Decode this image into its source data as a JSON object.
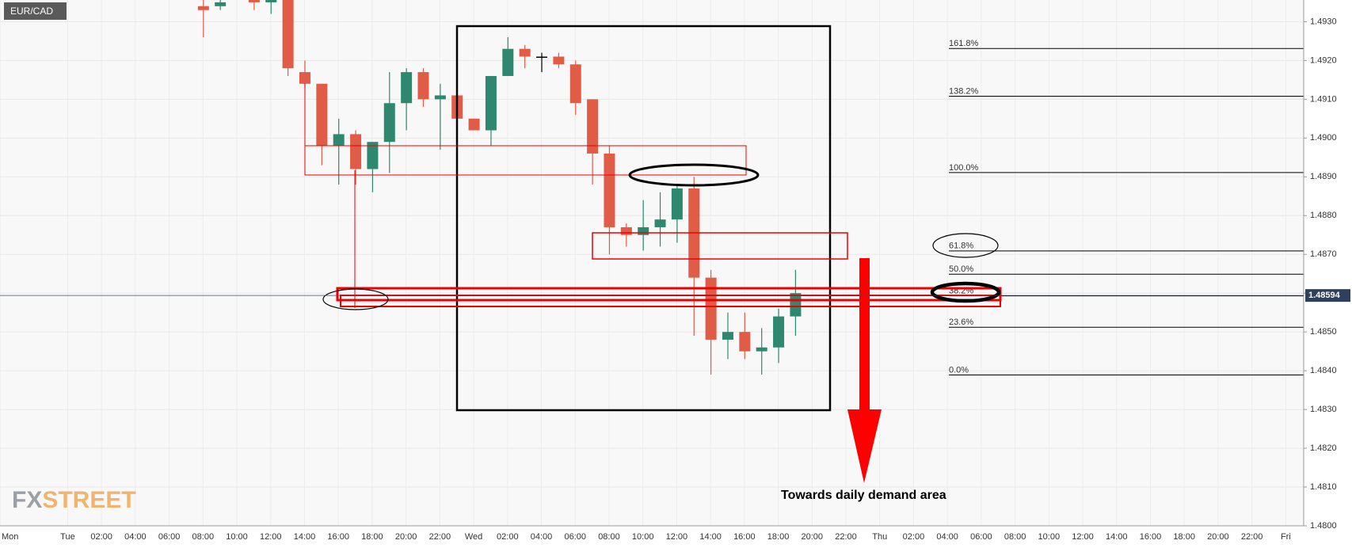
{
  "chart_data": {
    "type": "candlestick",
    "title": "EUR/CAD",
    "categories": [
      "Mon",
      null,
      null,
      null,
      "Tue",
      null,
      "02:00",
      null,
      "04:00",
      null,
      "06:00",
      null,
      "08:00",
      null,
      "10:00",
      null,
      "12:00",
      null,
      "14:00",
      null,
      "16:00",
      null,
      "18:00",
      null,
      "20:00",
      null,
      "22:00",
      null,
      "Wed",
      null,
      "02:00",
      null,
      "04:00",
      null,
      "06:00",
      null,
      "08:00",
      null,
      "10:00",
      null,
      "12:00",
      null,
      "14:00",
      null,
      "16:00",
      null,
      "18:00",
      null,
      "20:00",
      null,
      "22:00",
      null,
      "Thu",
      null,
      "02:00",
      null,
      "04:00",
      null,
      "06:00",
      null,
      "08:00",
      null,
      "10:00",
      null,
      "12:00",
      null,
      "14:00",
      null,
      "16:00",
      null,
      "18:00",
      null,
      "20:00",
      null,
      "22:00",
      null,
      "Fri"
    ],
    "open": [
      null,
      null,
      null,
      null,
      null,
      null,
      null,
      null,
      null,
      null,
      null,
      null,
      1.4934,
      1.4934,
      null,
      1.4936,
      1.4935,
      1.4936,
      1.4917,
      1.4914,
      1.4898,
      1.4901,
      1.4892,
      1.4899,
      1.4909,
      1.4917,
      1.491,
      1.4911,
      1.4905,
      1.4902,
      1.4916,
      1.4923,
      1.4921,
      1.4921,
      1.4919,
      1.491,
      1.4896,
      1.4877,
      1.4875,
      1.4877,
      1.4879,
      1.4887,
      1.4864,
      1.4848,
      1.485,
      1.4845,
      1.4846,
      1.4854,
      null,
      null,
      null,
      null,
      null,
      null,
      null,
      null,
      null,
      null,
      null,
      null,
      null,
      null,
      null,
      null,
      null,
      null,
      null,
      null,
      null,
      null,
      null,
      null,
      null,
      null,
      null,
      null,
      null
    ],
    "high": [
      null,
      null,
      null,
      null,
      null,
      null,
      null,
      null,
      null,
      null,
      null,
      null,
      1.494,
      1.494,
      null,
      1.494,
      1.494,
      1.494,
      1.492,
      1.4914,
      1.4905,
      1.4902,
      1.4899,
      1.4917,
      1.4918,
      1.4918,
      1.4914,
      1.4911,
      1.4905,
      1.4916,
      1.4926,
      1.4924,
      1.4922,
      1.4922,
      1.492,
      1.491,
      1.4898,
      1.4878,
      1.4884,
      1.4886,
      1.4888,
      1.489,
      1.4866,
      1.4855,
      1.4855,
      1.4851,
      1.4856,
      1.4866,
      null,
      null,
      null,
      null,
      null,
      null,
      null,
      null,
      null,
      null,
      null,
      null,
      null,
      null,
      null,
      null,
      null,
      null,
      null,
      null,
      null,
      null,
      null,
      null,
      null,
      null,
      null,
      null,
      null
    ],
    "low": [
      null,
      null,
      null,
      null,
      null,
      null,
      null,
      null,
      null,
      null,
      null,
      null,
      1.4926,
      1.4933,
      null,
      1.4933,
      1.4932,
      1.4916,
      1.4913,
      1.4893,
      1.4888,
      1.4888,
      1.4886,
      1.4891,
      1.4902,
      1.4908,
      1.4897,
      1.4904,
      1.4902,
      1.4898,
      1.4916,
      1.4918,
      1.4917,
      1.4918,
      1.4906,
      1.4888,
      1.487,
      1.4872,
      1.4871,
      1.4872,
      1.4873,
      1.4849,
      1.4839,
      1.4843,
      1.4843,
      1.4839,
      1.4842,
      1.4849,
      null,
      null,
      null,
      null,
      null,
      null,
      null,
      null,
      null,
      null,
      null,
      null,
      null,
      null,
      null,
      null,
      null,
      null,
      null,
      null,
      null,
      null,
      null,
      null,
      null,
      null,
      null,
      null,
      null
    ],
    "close": [
      null,
      null,
      null,
      null,
      null,
      null,
      null,
      null,
      null,
      null,
      null,
      null,
      1.4933,
      1.4935,
      null,
      1.4935,
      1.4937,
      1.4918,
      1.4914,
      1.4898,
      1.4901,
      1.4892,
      1.4899,
      1.4909,
      1.4917,
      1.491,
      1.4911,
      1.4905,
      1.4902,
      1.4916,
      1.4923,
      1.4921,
      1.4921,
      1.4919,
      1.4909,
      1.4896,
      1.4877,
      1.4875,
      1.4877,
      1.4879,
      1.4887,
      1.4864,
      1.4848,
      1.485,
      1.4845,
      1.4846,
      1.4854,
      1.486,
      null,
      null,
      null,
      null,
      null,
      null,
      null,
      null,
      null,
      null,
      null,
      null,
      null,
      null,
      null,
      null,
      null,
      null,
      null,
      null,
      null,
      null,
      null,
      null,
      null,
      null,
      null,
      null,
      null
    ],
    "up_color": "#2e8870",
    "down_color": "#e05c47",
    "neutral_color": "#000000",
    "ylim": [
      1.48,
      1.49356
    ],
    "yticks": [
      {
        "value": 1.48,
        "label": "1.4800"
      },
      {
        "value": 1.481,
        "label": "1.4810"
      },
      {
        "value": 1.482,
        "label": "1.4820"
      },
      {
        "value": 1.483,
        "label": "1.4830"
      },
      {
        "value": 1.484,
        "label": "1.4840"
      },
      {
        "value": 1.485,
        "label": "1.4850"
      },
      {
        "value": 1.486,
        "label": "1.4860"
      },
      {
        "value": 1.487,
        "label": "1.4870"
      },
      {
        "value": 1.488,
        "label": "1.4880"
      },
      {
        "value": 1.489,
        "label": "1.4890"
      },
      {
        "value": 1.49,
        "label": "1.4900"
      },
      {
        "value": 1.491,
        "label": "1.4910"
      },
      {
        "value": 1.492,
        "label": "1.4920"
      },
      {
        "value": 1.493,
        "label": "1.4930"
      }
    ],
    "grid": true,
    "last_price": 1.48594,
    "fib_levels": [
      {
        "label": "161.8%",
        "price": 1.49231
      },
      {
        "label": "138.2%",
        "price": 1.49108
      },
      {
        "label": "100.0%",
        "price": 1.48911
      },
      {
        "label": "61.8%",
        "price": 1.48709
      },
      {
        "label": "50.0%",
        "price": 1.48649
      },
      {
        "label": "38.2%",
        "price": 1.48593
      },
      {
        "label": "23.6%",
        "price": 1.48512
      },
      {
        "label": "0.0%",
        "price": 1.48389
      }
    ],
    "annotation": "Towards daily demand area",
    "logo": [
      "FX",
      "STREET"
    ]
  }
}
